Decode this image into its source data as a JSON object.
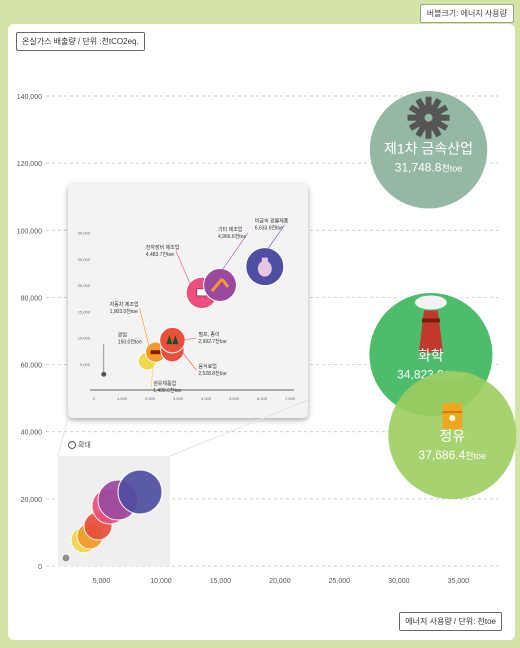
{
  "legend_label": "버블크기: 에너지 사용량",
  "ylabel": "온실가스 배출량 / 단위 :천tCO2eq.",
  "xlabel": "에너지 사용량 / 단위: 천toe",
  "zoom_label": "확대",
  "chart_data": {
    "type": "scatter",
    "xlabel": "에너지 사용량 / 단위: 천toe",
    "ylabel": "온실가스 배출량 / 단위 :천tCO2eq.",
    "xlim": [
      0,
      38000
    ],
    "ylim": [
      0,
      140000
    ],
    "x_ticks": [
      "5,000",
      "10,000",
      "15,000",
      "20,000",
      "25,000",
      "30,000",
      "35,000"
    ],
    "y_ticks": [
      "0",
      "20,000",
      "40,000",
      "60,000",
      "80,000",
      "100,000",
      "120,000",
      "140,000"
    ],
    "grid": true,
    "bubbles": [
      {
        "name": "제1차 금속산업",
        "size": 31748.8,
        "size_label": "31,748.8",
        "unit": "천toe",
        "x": 33000,
        "y": 124000,
        "color": "#94b8a3",
        "icon": "gear-icon"
      },
      {
        "name": "화학",
        "size": 34823.0,
        "size_label": "34,823.0",
        "unit": "천toe",
        "x": 33200,
        "y": 63000,
        "color": "#4dbd6c",
        "icon": "factory-chimney-icon"
      },
      {
        "name": "정유",
        "size": 37686.4,
        "size_label": "37,686.4",
        "unit": "천toe",
        "x": 35000,
        "y": 39000,
        "color": "#9ccd60",
        "icon": "oil-barrel-icon"
      }
    ],
    "small_bubble_colors": [
      "#f3d64b",
      "#f39a2d",
      "#e94f3a",
      "#ea4f7d",
      "#9a4a9e",
      "#4f4ea2"
    ],
    "inset": {
      "xlim": [
        0,
        7000
      ],
      "ylim": [
        0,
        32000
      ],
      "x_ticks": [
        "0",
        "1,000",
        "2,000",
        "3,000",
        "4,000",
        "5,000",
        "6,000",
        "7,000"
      ],
      "y_ticks": [
        "5,000",
        "10,000",
        "15,000",
        "20,000",
        "25,000",
        "30,000"
      ],
      "bubbles": [
        {
          "name": "광업",
          "size": 150.0,
          "size_label": "150.0",
          "unit": "천toe",
          "x": 350,
          "y": 3000,
          "color": "#888888"
        },
        {
          "name": "섬유제품업",
          "size": 1490.6,
          "size_label": "1,490.6",
          "unit": "천toe",
          "x": 1900,
          "y": 5500,
          "color": "#f3d64b"
        },
        {
          "name": "자동차 제조업",
          "size": 1903.0,
          "size_label": "1,903.0",
          "unit": "천toe",
          "x": 2200,
          "y": 7200,
          "color": "#f39a2d",
          "icon": "car-icon"
        },
        {
          "name": "음식료업",
          "size": 2528.8,
          "size_label": "2,528.8",
          "unit": "천toe",
          "x": 2800,
          "y": 7600,
          "color": "#e94f3a"
        },
        {
          "name": "펄프, 종이",
          "size": 2992.7,
          "size_label": "2,992.7",
          "unit": "천toe",
          "x": 2800,
          "y": 9500,
          "color": "#e94f3a",
          "icon": "trees-icon"
        },
        {
          "name": "전자장비 제조업",
          "size": 4483.7,
          "size_label": "4,483.7",
          "unit": "천toe",
          "x": 3850,
          "y": 18500,
          "color": "#ea4f7d",
          "icon": "computer-icon"
        },
        {
          "name": "기타 제조업",
          "size": 4966.6,
          "size_label": "4,966.6",
          "unit": "천toe",
          "x": 4500,
          "y": 20000,
          "color": "#9a4a9e",
          "icon": "robot-arm-icon"
        },
        {
          "name": "비금속 광물제품",
          "size": 6633.9,
          "size_label": "6,633.9",
          "unit": "천toe",
          "x": 6100,
          "y": 23500,
          "color": "#4f4ea2",
          "icon": "vase-icon"
        }
      ]
    }
  }
}
